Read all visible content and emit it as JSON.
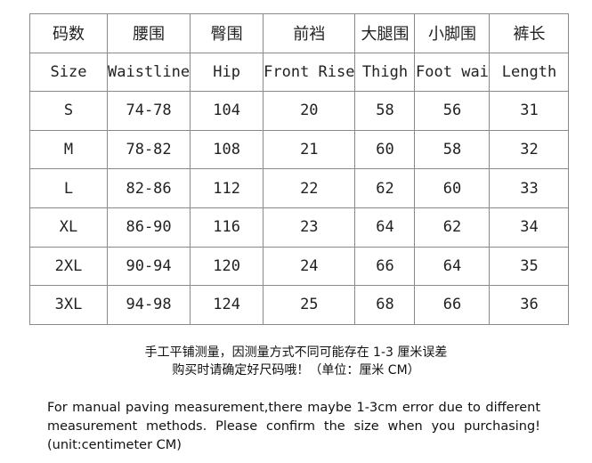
{
  "headers_cn": [
    "码数",
    "腰围",
    "臀围",
    "前裆",
    "大腿围",
    "小脚围",
    "裤长"
  ],
  "headers_en": [
    "Size",
    "Waistline",
    "Hip",
    "Front Rise",
    "Thigh",
    "Foot wai",
    "Length"
  ],
  "rows": [
    [
      "S",
      "74-78",
      "104",
      "20",
      "58",
      "56",
      "31"
    ],
    [
      "M",
      "78-82",
      "108",
      "21",
      "60",
      "58",
      "32"
    ],
    [
      "L",
      "82-86",
      "112",
      "22",
      "62",
      "60",
      "33"
    ],
    [
      "XL",
      "86-90",
      "116",
      "23",
      "64",
      "62",
      "34"
    ],
    [
      "2XL",
      "90-94",
      "120",
      "24",
      "66",
      "64",
      "35"
    ],
    [
      "3XL",
      "94-98",
      "124",
      "25",
      "68",
      "66",
      "36"
    ]
  ],
  "note_cn": [
    "手工平铺测量，因测量方式不同可能存在 1-3 厘米误差",
    "购买时请确定好尺码哦！（单位：厘米 CM）"
  ],
  "note_en": "For manual paving measurement,there maybe 1-3cm error due to different measurement methods. Please confirm the size when you purchasing! (unit:centimeter CM)"
}
